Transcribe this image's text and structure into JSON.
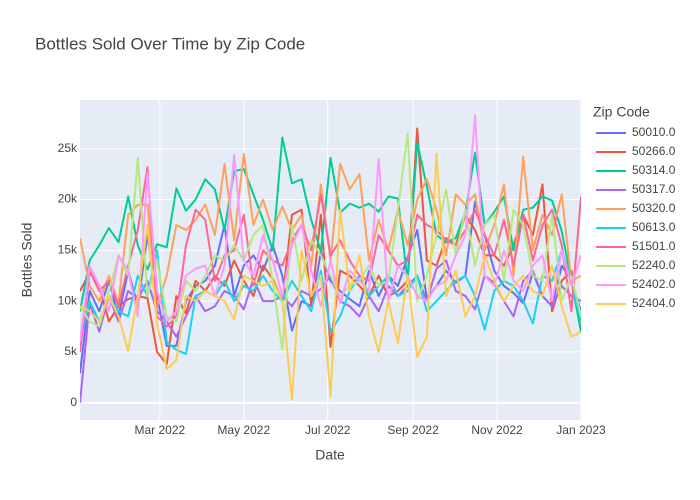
{
  "chart_data": {
    "type": "line",
    "title": "Bottles Sold Over Time by Zip Code",
    "xlabel": "Date",
    "ylabel": "Bottles Sold",
    "legend_title": "Zip Code",
    "legend": "right",
    "grid": true,
    "x": [
      "2022-01-02",
      "2022-01-09",
      "2022-01-16",
      "2022-01-23",
      "2022-01-30",
      "2022-02-06",
      "2022-02-13",
      "2022-02-20",
      "2022-02-27",
      "2022-03-06",
      "2022-03-13",
      "2022-03-20",
      "2022-03-27",
      "2022-04-03",
      "2022-04-10",
      "2022-04-17",
      "2022-04-24",
      "2022-05-01",
      "2022-05-08",
      "2022-05-15",
      "2022-05-22",
      "2022-05-29",
      "2022-06-05",
      "2022-06-12",
      "2022-06-19",
      "2022-06-26",
      "2022-07-03",
      "2022-07-10",
      "2022-07-17",
      "2022-07-24",
      "2022-07-31",
      "2022-08-07",
      "2022-08-14",
      "2022-08-21",
      "2022-08-28",
      "2022-09-04",
      "2022-09-11",
      "2022-09-18",
      "2022-09-25",
      "2022-10-02",
      "2022-10-09",
      "2022-10-16",
      "2022-10-23",
      "2022-10-30",
      "2022-11-06",
      "2022-11-13",
      "2022-11-20",
      "2022-11-27",
      "2022-12-04",
      "2022-12-11",
      "2022-12-18",
      "2022-12-25",
      "2023-01-01"
    ],
    "xlim": [
      "2022-01-02",
      "2023-01-01"
    ],
    "xticks": [
      {
        "value": "2022-03-01",
        "label": "Mar 2022"
      },
      {
        "value": "2022-05-01",
        "label": "May 2022"
      },
      {
        "value": "2022-07-01",
        "label": "Jul 2022"
      },
      {
        "value": "2022-09-01",
        "label": "Sep 2022"
      },
      {
        "value": "2022-11-01",
        "label": "Nov 2022"
      },
      {
        "value": "2023-01-01",
        "label": "Jan 2023"
      }
    ],
    "ylim": [
      -1700,
      29800
    ],
    "yticks": [
      0,
      {
        "value": 5000,
        "label": "5k"
      },
      {
        "value": 10000,
        "label": "10k"
      },
      {
        "value": 15000,
        "label": "15k"
      },
      {
        "value": 20000,
        "label": "20k"
      },
      {
        "value": 25000,
        "label": "25k"
      }
    ],
    "series": [
      {
        "name": "50010.0",
        "color": "#636efa",
        "values": [
          2900,
          11000,
          9000,
          12000,
          8500,
          13000,
          9500,
          16500,
          10500,
          5600,
          5600,
          10000,
          11500,
          12000,
          13500,
          17500,
          10500,
          13500,
          14500,
          13000,
          15500,
          12500,
          7100,
          10000,
          9500,
          14800,
          12000,
          11000,
          10200,
          9500,
          13000,
          10500,
          12500,
          11500,
          14300,
          17000,
          10200,
          11500,
          13000,
          11800,
          12500,
          19800,
          16500,
          13000,
          11500,
          10800,
          9800,
          12800,
          10500,
          9500,
          13500,
          12000,
          9000
        ]
      },
      {
        "name": "50266.0",
        "color": "#EF553B",
        "values": [
          11000,
          12800,
          11500,
          8000,
          9500,
          10200,
          10500,
          10300,
          5000,
          3800,
          10500,
          8800,
          12000,
          11000,
          12500,
          11500,
          14000,
          12000,
          10500,
          13500,
          12200,
          10000,
          18500,
          19000,
          9500,
          18500,
          5500,
          13000,
          12500,
          11500,
          10500,
          12500,
          10500,
          11000,
          12000,
          27000,
          14000,
          13500,
          16200,
          15500,
          18500,
          17000,
          14500,
          14500,
          13500,
          15500,
          18500,
          16500,
          21500,
          9000,
          12000,
          13000,
          7000
        ]
      },
      {
        "name": "50314.0",
        "color": "#00cc96",
        "values": [
          9000,
          14000,
          15500,
          17200,
          15800,
          20300,
          15500,
          13100,
          15600,
          15300,
          21100,
          18900,
          20000,
          22000,
          21000,
          17000,
          22800,
          23000,
          20500,
          18000,
          15000,
          26100,
          21600,
          22000,
          18000,
          14900,
          24100,
          18700,
          19600,
          19200,
          19600,
          18800,
          20300,
          20100,
          12000,
          25600,
          21300,
          16500,
          15800,
          16200,
          18700,
          24600,
          17500,
          18800,
          20300,
          15000,
          19000,
          19200,
          20300,
          19900,
          16900,
          12000,
          7000
        ]
      },
      {
        "name": "50317.0",
        "color": "#ab63fa",
        "values": [
          0,
          9800,
          7000,
          10500,
          8000,
          11000,
          10200,
          12000,
          9000,
          8000,
          6500,
          8500,
          10500,
          9000,
          9500,
          11000,
          10500,
          9200,
          12200,
          10000,
          10000,
          10500,
          9500,
          11000,
          10500,
          11200,
          12500,
          10000,
          9500,
          8500,
          10500,
          9000,
          11500,
          10500,
          11500,
          12500,
          10000,
          13200,
          14000,
          11000,
          10500,
          9200,
          12500,
          11800,
          10000,
          8500,
          12000,
          13000,
          10500,
          9500,
          11500,
          10500,
          10000
        ]
      },
      {
        "name": "50320.0",
        "color": "#FFA15A",
        "values": [
          16200,
          11500,
          10000,
          12500,
          9800,
          18500,
          19500,
          19500,
          9500,
          12500,
          17500,
          17000,
          18000,
          19500,
          16500,
          23500,
          16000,
          24500,
          17500,
          20000,
          17000,
          19300,
          17000,
          18500,
          13500,
          21500,
          14000,
          23500,
          21000,
          22500,
          14000,
          18000,
          15000,
          19000,
          15500,
          20000,
          22000,
          19000,
          14500,
          20500,
          19500,
          20500,
          15000,
          17500,
          21500,
          12500,
          24200,
          15000,
          18500,
          16500,
          20500,
          12000,
          12500
        ]
      },
      {
        "name": "50613.0",
        "color": "#19d3f3",
        "values": [
          6000,
          10000,
          8000,
          10500,
          9000,
          8500,
          12500,
          10500,
          15000,
          6000,
          5200,
          4800,
          10500,
          11000,
          10500,
          12000,
          10000,
          11500,
          11000,
          12500,
          11000,
          10000,
          12000,
          10500,
          9000,
          13000,
          7000,
          8500,
          11000,
          12500,
          10500,
          11500,
          12500,
          10500,
          11000,
          12500,
          9000,
          10000,
          11000,
          12000,
          12500,
          10500,
          7200,
          11000,
          12000,
          11500,
          10000,
          7800,
          12500,
          12000,
          15000,
          12000,
          8000
        ]
      },
      {
        "name": "51501.0",
        "color": "#FF6692",
        "values": [
          5000,
          13000,
          11000,
          12000,
          9500,
          13500,
          17000,
          23200,
          8500,
          7500,
          8500,
          15500,
          19000,
          18000,
          12000,
          14500,
          15000,
          18500,
          11500,
          15000,
          14000,
          13500,
          16000,
          17500,
          15000,
          20500,
          14500,
          16000,
          14000,
          12500,
          12000,
          16500,
          15000,
          13500,
          14000,
          18500,
          17500,
          17000,
          16000,
          15500,
          17000,
          19000,
          16500,
          14500,
          18000,
          13500,
          18500,
          14000,
          17500,
          19000,
          15500,
          9000,
          20300
        ]
      },
      {
        "name": "52240.0",
        "color": "#B6E880",
        "values": [
          9500,
          8000,
          7500,
          11000,
          14500,
          12500,
          24100,
          10500,
          14000,
          8500,
          8000,
          12000,
          11000,
          12500,
          14500,
          14000,
          15500,
          14000,
          16500,
          17500,
          12000,
          5200,
          17500,
          12000,
          16000,
          14500,
          12500,
          10500,
          11500,
          12000,
          13500,
          11500,
          12000,
          19000,
          26500,
          10000,
          12500,
          16500,
          21000,
          14500,
          19000,
          13500,
          17500,
          18500,
          12000,
          19000,
          17500,
          12500,
          12000,
          18500,
          10000,
          12500,
          8500
        ]
      },
      {
        "name": "52402.0",
        "color": "#FF97FF",
        "values": [
          6000,
          13500,
          11500,
          9000,
          14500,
          13000,
          8500,
          22600,
          11000,
          8000,
          9000,
          12500,
          13200,
          13500,
          10500,
          13500,
          24400,
          14000,
          12500,
          16500,
          14000,
          10500,
          15500,
          17500,
          13000,
          9500,
          14000,
          9800,
          13000,
          12000,
          11000,
          24000,
          10000,
          13500,
          12500,
          10500,
          10000,
          11500,
          12000,
          14500,
          16500,
          28300,
          12500,
          11500,
          15000,
          12000,
          11000,
          13500,
          14500,
          10000,
          15000,
          11500,
          14500
        ]
      },
      {
        "name": "52404.0",
        "color": "#FECB52",
        "values": [
          9500,
          9000,
          8000,
          10500,
          8500,
          5100,
          10500,
          17500,
          7800,
          3300,
          4200,
          10500,
          10000,
          11000,
          10500,
          10000,
          8200,
          12500,
          12000,
          11500,
          12000,
          10000,
          300,
          15000,
          10500,
          12500,
          600,
          19000,
          11000,
          14500,
          8500,
          5000,
          10000,
          5900,
          12500,
          4500,
          6500,
          24500,
          10500,
          13000,
          8500,
          10500,
          14500,
          12000,
          10000,
          11500,
          12500,
          11000,
          10500,
          13500,
          9500,
          6500,
          7000
        ]
      }
    ]
  }
}
